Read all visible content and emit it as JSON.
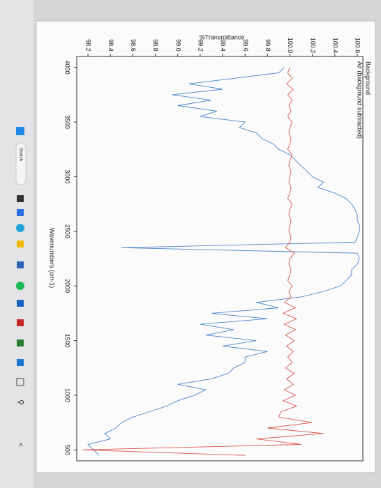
{
  "chart_data": {
    "type": "line",
    "title": "%Transmittance",
    "x_label": "Wavenumbers (cm-1)",
    "x": [
      4000,
      3950,
      3900,
      3850,
      3800,
      3750,
      3700,
      3650,
      3600,
      3550,
      3500,
      3450,
      3400,
      3350,
      3300,
      3250,
      3200,
      3150,
      3100,
      3050,
      3000,
      2950,
      2900,
      2850,
      2800,
      2750,
      2700,
      2650,
      2600,
      2550,
      2500,
      2450,
      2400,
      2350,
      2300,
      2250,
      2200,
      2150,
      2100,
      2050,
      2000,
      1950,
      1900,
      1850,
      1800,
      1750,
      1700,
      1650,
      1600,
      1550,
      1500,
      1450,
      1400,
      1350,
      1300,
      1250,
      1200,
      1150,
      1100,
      1050,
      1000,
      950,
      900,
      850,
      800,
      750,
      700,
      650,
      600,
      550,
      500,
      450
    ],
    "series": [
      {
        "name": "Background",
        "color": "#4a86c8",
        "values": [
          99.95,
          99.9,
          99.5,
          99.1,
          99.4,
          98.95,
          99.3,
          99.0,
          99.35,
          99.2,
          99.6,
          99.55,
          99.7,
          99.75,
          99.85,
          99.9,
          100.0,
          100.05,
          100.1,
          100.15,
          100.2,
          100.3,
          100.25,
          100.4,
          100.5,
          100.55,
          100.58,
          100.6,
          100.6,
          100.62,
          100.62,
          100.6,
          100.58,
          98.5,
          100.6,
          100.62,
          100.6,
          100.55,
          100.55,
          100.5,
          100.45,
          100.3,
          100.1,
          99.7,
          99.9,
          99.3,
          99.8,
          99.2,
          99.5,
          99.25,
          99.7,
          99.4,
          99.8,
          99.6,
          99.6,
          99.5,
          99.45,
          99.3,
          99.0,
          99.25,
          99.15,
          99.0,
          98.9,
          98.75,
          98.6,
          98.5,
          98.45,
          98.35,
          98.4,
          98.2,
          98.25,
          98.3
        ]
      },
      {
        "name": "Air (background subtracted)",
        "color": "#d9534f",
        "values": [
          100.0,
          99.98,
          100.02,
          99.97,
          100.03,
          99.98,
          100.02,
          99.99,
          100.01,
          99.98,
          100.02,
          100.0,
          99.99,
          100.01,
          100.0,
          99.98,
          100.02,
          100.0,
          99.99,
          100.01,
          100.0,
          99.99,
          100.01,
          100.0,
          99.98,
          100.02,
          100.0,
          99.99,
          100.01,
          100.0,
          99.99,
          100.01,
          100.0,
          99.96,
          100.04,
          100.0,
          99.99,
          100.01,
          100.0,
          99.98,
          100.02,
          99.99,
          100.01,
          99.95,
          100.05,
          99.94,
          100.06,
          99.95,
          100.05,
          99.96,
          100.04,
          99.97,
          100.03,
          99.98,
          100.02,
          99.96,
          100.04,
          99.97,
          100.03,
          99.95,
          100.05,
          99.94,
          100.06,
          99.92,
          99.9,
          100.2,
          99.8,
          100.3,
          99.7,
          100.1,
          98.15,
          99.6
        ]
      }
    ],
    "xlim": [
      4100,
      400
    ],
    "xticks": [
      4000,
      3500,
      3000,
      2500,
      2000,
      1500,
      1000,
      500
    ],
    "ylim": [
      98.1,
      100.65
    ],
    "yticks": [
      98.2,
      98.4,
      98.6,
      98.8,
      {
        "value": 99,
        "label": "99.0"
      },
      99.2,
      99.4,
      99.6,
      99.8,
      {
        "value": 100,
        "label": "100.0"
      },
      100.2,
      100.4,
      100.6
    ],
    "grid": false
  },
  "taskbar": {
    "search": "Search"
  }
}
